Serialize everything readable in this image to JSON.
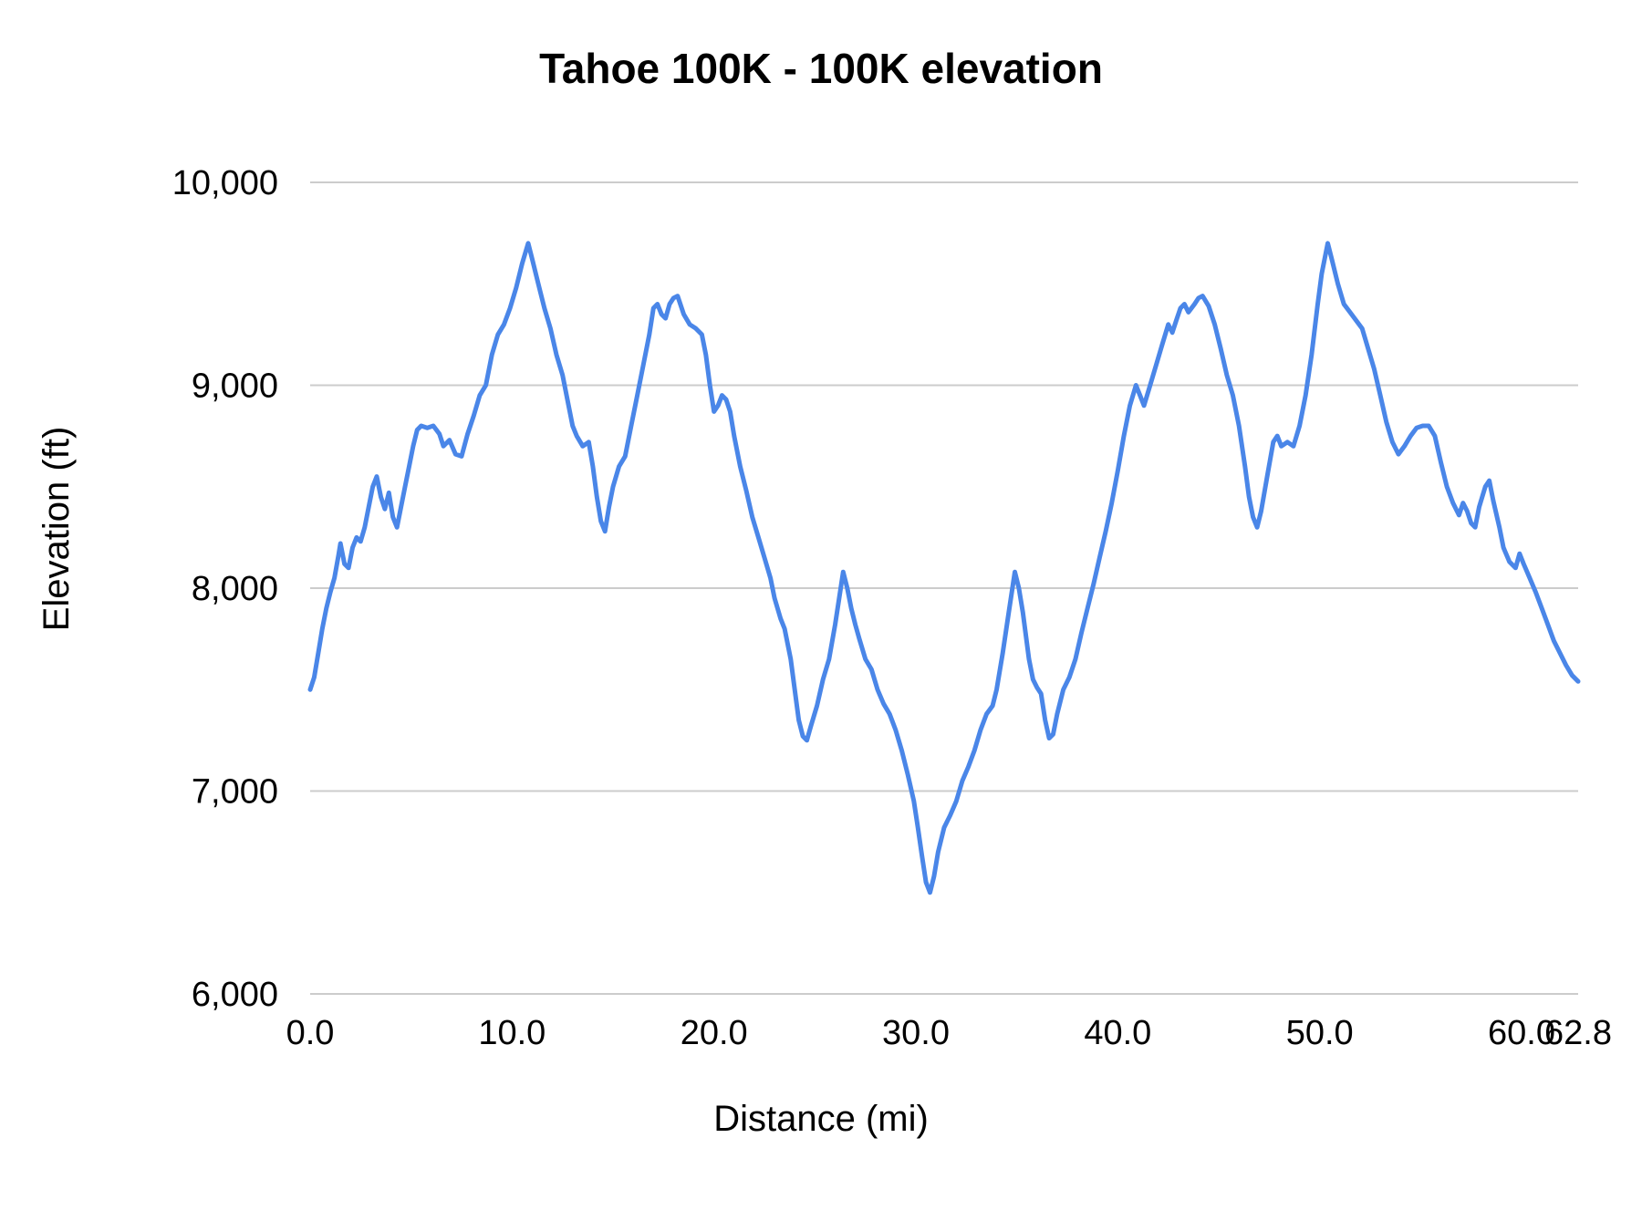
{
  "page": {
    "background": "#ffffff"
  },
  "chart_data": {
    "type": "line",
    "title": "Tahoe 100K - 100K elevation",
    "xlabel": "Distance (mi)",
    "ylabel": "Elevation (ft)",
    "xlim": [
      0,
      62.8
    ],
    "ylim": [
      6000,
      10000
    ],
    "grid": true,
    "legend_position": "none",
    "line_color": "#4a86e8",
    "gridline_color": "#cccccc",
    "text_color": "#000000",
    "yticks": [
      {
        "value": 6000,
        "label": "6,000"
      },
      {
        "value": 7000,
        "label": "7,000"
      },
      {
        "value": 8000,
        "label": "8,000"
      },
      {
        "value": 9000,
        "label": "9,000"
      },
      {
        "value": 10000,
        "label": "10,000"
      }
    ],
    "xticks": [
      {
        "value": 0,
        "label": "0.0"
      },
      {
        "value": 10,
        "label": "10.0"
      },
      {
        "value": 20,
        "label": "20.0"
      },
      {
        "value": 30,
        "label": "30.0"
      },
      {
        "value": 40,
        "label": "40.0"
      },
      {
        "value": 50,
        "label": "50.0"
      },
      {
        "value": 60,
        "label": "60.0"
      },
      {
        "value": 62.8,
        "label": "62.8"
      }
    ],
    "series": [
      {
        "name": "Elevation (ft)",
        "points": [
          [
            0.0,
            7500
          ],
          [
            0.2,
            7560
          ],
          [
            0.4,
            7680
          ],
          [
            0.6,
            7800
          ],
          [
            0.8,
            7900
          ],
          [
            1.0,
            7980
          ],
          [
            1.2,
            8050
          ],
          [
            1.4,
            8160
          ],
          [
            1.5,
            8220
          ],
          [
            1.7,
            8120
          ],
          [
            1.9,
            8100
          ],
          [
            2.1,
            8200
          ],
          [
            2.3,
            8250
          ],
          [
            2.5,
            8230
          ],
          [
            2.7,
            8300
          ],
          [
            2.9,
            8400
          ],
          [
            3.1,
            8500
          ],
          [
            3.3,
            8550
          ],
          [
            3.5,
            8450
          ],
          [
            3.7,
            8390
          ],
          [
            3.9,
            8470
          ],
          [
            4.1,
            8350
          ],
          [
            4.3,
            8300
          ],
          [
            4.5,
            8400
          ],
          [
            4.7,
            8500
          ],
          [
            4.9,
            8600
          ],
          [
            5.1,
            8700
          ],
          [
            5.3,
            8780
          ],
          [
            5.5,
            8800
          ],
          [
            5.8,
            8790
          ],
          [
            6.1,
            8800
          ],
          [
            6.4,
            8760
          ],
          [
            6.6,
            8700
          ],
          [
            6.9,
            8730
          ],
          [
            7.2,
            8660
          ],
          [
            7.5,
            8650
          ],
          [
            7.8,
            8760
          ],
          [
            8.1,
            8850
          ],
          [
            8.4,
            8950
          ],
          [
            8.7,
            9000
          ],
          [
            9.0,
            9150
          ],
          [
            9.3,
            9250
          ],
          [
            9.6,
            9300
          ],
          [
            9.9,
            9380
          ],
          [
            10.2,
            9480
          ],
          [
            10.5,
            9600
          ],
          [
            10.8,
            9700
          ],
          [
            11.0,
            9620
          ],
          [
            11.3,
            9500
          ],
          [
            11.6,
            9380
          ],
          [
            11.9,
            9280
          ],
          [
            12.2,
            9150
          ],
          [
            12.5,
            9050
          ],
          [
            12.8,
            8900
          ],
          [
            13.0,
            8800
          ],
          [
            13.2,
            8750
          ],
          [
            13.5,
            8700
          ],
          [
            13.8,
            8720
          ],
          [
            14.0,
            8600
          ],
          [
            14.2,
            8450
          ],
          [
            14.4,
            8330
          ],
          [
            14.6,
            8280
          ],
          [
            14.8,
            8400
          ],
          [
            15.0,
            8500
          ],
          [
            15.3,
            8600
          ],
          [
            15.6,
            8650
          ],
          [
            15.9,
            8800
          ],
          [
            16.2,
            8950
          ],
          [
            16.5,
            9100
          ],
          [
            16.8,
            9250
          ],
          [
            17.0,
            9380
          ],
          [
            17.2,
            9400
          ],
          [
            17.4,
            9350
          ],
          [
            17.6,
            9330
          ],
          [
            17.8,
            9400
          ],
          [
            18.0,
            9430
          ],
          [
            18.2,
            9440
          ],
          [
            18.5,
            9350
          ],
          [
            18.8,
            9300
          ],
          [
            19.1,
            9280
          ],
          [
            19.4,
            9250
          ],
          [
            19.6,
            9150
          ],
          [
            19.8,
            9000
          ],
          [
            20.0,
            8870
          ],
          [
            20.2,
            8900
          ],
          [
            20.4,
            8950
          ],
          [
            20.6,
            8930
          ],
          [
            20.8,
            8870
          ],
          [
            21.0,
            8750
          ],
          [
            21.3,
            8600
          ],
          [
            21.6,
            8480
          ],
          [
            21.9,
            8350
          ],
          [
            22.2,
            8250
          ],
          [
            22.5,
            8150
          ],
          [
            22.8,
            8050
          ],
          [
            23.0,
            7950
          ],
          [
            23.3,
            7850
          ],
          [
            23.5,
            7800
          ],
          [
            23.8,
            7650
          ],
          [
            24.0,
            7500
          ],
          [
            24.2,
            7350
          ],
          [
            24.4,
            7270
          ],
          [
            24.6,
            7250
          ],
          [
            24.8,
            7320
          ],
          [
            25.1,
            7420
          ],
          [
            25.4,
            7550
          ],
          [
            25.7,
            7650
          ],
          [
            26.0,
            7820
          ],
          [
            26.2,
            7950
          ],
          [
            26.4,
            8080
          ],
          [
            26.6,
            8000
          ],
          [
            26.8,
            7900
          ],
          [
            27.0,
            7820
          ],
          [
            27.2,
            7750
          ],
          [
            27.5,
            7650
          ],
          [
            27.8,
            7600
          ],
          [
            28.1,
            7500
          ],
          [
            28.4,
            7430
          ],
          [
            28.7,
            7380
          ],
          [
            29.0,
            7300
          ],
          [
            29.3,
            7200
          ],
          [
            29.6,
            7080
          ],
          [
            29.9,
            6950
          ],
          [
            30.1,
            6820
          ],
          [
            30.3,
            6680
          ],
          [
            30.5,
            6550
          ],
          [
            30.7,
            6500
          ],
          [
            30.9,
            6580
          ],
          [
            31.1,
            6700
          ],
          [
            31.4,
            6820
          ],
          [
            31.7,
            6880
          ],
          [
            32.0,
            6950
          ],
          [
            32.3,
            7050
          ],
          [
            32.6,
            7120
          ],
          [
            32.9,
            7200
          ],
          [
            33.2,
            7300
          ],
          [
            33.5,
            7380
          ],
          [
            33.8,
            7420
          ],
          [
            34.0,
            7500
          ],
          [
            34.3,
            7680
          ],
          [
            34.6,
            7880
          ],
          [
            34.9,
            8080
          ],
          [
            35.1,
            8000
          ],
          [
            35.3,
            7880
          ],
          [
            35.6,
            7650
          ],
          [
            35.8,
            7550
          ],
          [
            36.0,
            7510
          ],
          [
            36.2,
            7480
          ],
          [
            36.4,
            7350
          ],
          [
            36.6,
            7260
          ],
          [
            36.8,
            7280
          ],
          [
            37.0,
            7380
          ],
          [
            37.3,
            7500
          ],
          [
            37.6,
            7560
          ],
          [
            37.9,
            7650
          ],
          [
            38.2,
            7780
          ],
          [
            38.5,
            7900
          ],
          [
            38.8,
            8020
          ],
          [
            39.1,
            8150
          ],
          [
            39.4,
            8280
          ],
          [
            39.7,
            8420
          ],
          [
            40.0,
            8580
          ],
          [
            40.3,
            8750
          ],
          [
            40.6,
            8900
          ],
          [
            40.9,
            9000
          ],
          [
            41.1,
            8950
          ],
          [
            41.3,
            8900
          ],
          [
            41.6,
            9000
          ],
          [
            41.9,
            9100
          ],
          [
            42.2,
            9200
          ],
          [
            42.5,
            9300
          ],
          [
            42.7,
            9260
          ],
          [
            42.9,
            9320
          ],
          [
            43.1,
            9380
          ],
          [
            43.3,
            9400
          ],
          [
            43.5,
            9360
          ],
          [
            43.8,
            9400
          ],
          [
            44.0,
            9430
          ],
          [
            44.2,
            9440
          ],
          [
            44.5,
            9390
          ],
          [
            44.8,
            9300
          ],
          [
            45.1,
            9180
          ],
          [
            45.4,
            9050
          ],
          [
            45.7,
            8950
          ],
          [
            46.0,
            8800
          ],
          [
            46.3,
            8600
          ],
          [
            46.5,
            8450
          ],
          [
            46.7,
            8350
          ],
          [
            46.9,
            8300
          ],
          [
            47.1,
            8380
          ],
          [
            47.4,
            8550
          ],
          [
            47.7,
            8720
          ],
          [
            47.9,
            8750
          ],
          [
            48.1,
            8700
          ],
          [
            48.4,
            8720
          ],
          [
            48.7,
            8700
          ],
          [
            49.0,
            8800
          ],
          [
            49.3,
            8950
          ],
          [
            49.6,
            9150
          ],
          [
            49.9,
            9400
          ],
          [
            50.1,
            9550
          ],
          [
            50.4,
            9700
          ],
          [
            50.6,
            9620
          ],
          [
            50.9,
            9500
          ],
          [
            51.2,
            9400
          ],
          [
            51.5,
            9360
          ],
          [
            51.8,
            9320
          ],
          [
            52.1,
            9280
          ],
          [
            52.4,
            9180
          ],
          [
            52.7,
            9080
          ],
          [
            53.0,
            8950
          ],
          [
            53.3,
            8820
          ],
          [
            53.6,
            8720
          ],
          [
            53.9,
            8660
          ],
          [
            54.2,
            8700
          ],
          [
            54.5,
            8750
          ],
          [
            54.8,
            8790
          ],
          [
            55.1,
            8800
          ],
          [
            55.4,
            8800
          ],
          [
            55.7,
            8750
          ],
          [
            56.0,
            8620
          ],
          [
            56.3,
            8500
          ],
          [
            56.6,
            8420
          ],
          [
            56.9,
            8360
          ],
          [
            57.1,
            8420
          ],
          [
            57.3,
            8380
          ],
          [
            57.5,
            8320
          ],
          [
            57.7,
            8300
          ],
          [
            57.9,
            8400
          ],
          [
            58.2,
            8500
          ],
          [
            58.4,
            8530
          ],
          [
            58.6,
            8430
          ],
          [
            58.9,
            8300
          ],
          [
            59.1,
            8200
          ],
          [
            59.4,
            8130
          ],
          [
            59.7,
            8100
          ],
          [
            59.9,
            8170
          ],
          [
            60.1,
            8120
          ],
          [
            60.4,
            8050
          ],
          [
            60.7,
            7980
          ],
          [
            61.0,
            7900
          ],
          [
            61.3,
            7820
          ],
          [
            61.6,
            7740
          ],
          [
            61.9,
            7680
          ],
          [
            62.2,
            7620
          ],
          [
            62.5,
            7570
          ],
          [
            62.8,
            7540
          ]
        ]
      }
    ]
  }
}
